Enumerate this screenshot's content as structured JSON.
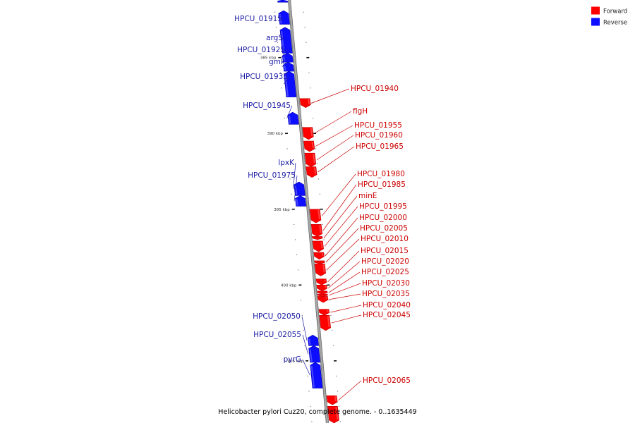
{
  "colors": {
    "forward": "#ff0000",
    "forward_edge": "#c00000",
    "reverse": "#0d0dff",
    "reverse_edge": "#0000b0",
    "backbone": "#9a9a9a",
    "backbone_dark": "#6a6a6a",
    "label_forward": "#cc0000",
    "label_reverse": "#1a1aa6"
  },
  "legend": [
    {
      "label": "Forward",
      "strand": "forward"
    },
    {
      "label": "Reverse",
      "strand": "reverse"
    }
  ],
  "caption": "Helicobacter pylori Cuz20, complete genome. - 0..1635449",
  "genome": {
    "view_start_kbp": 381.2,
    "view_end_kbp": 409.1,
    "tick_interval_kbp": 5,
    "ticks": [
      {
        "kbp": 385,
        "label": "385 kbp"
      },
      {
        "kbp": 390,
        "label": "390 kbp"
      },
      {
        "kbp": 395,
        "label": "395 kbp"
      },
      {
        "kbp": 400,
        "label": "400 kbp"
      },
      {
        "kbp": 405,
        "label": "405 kbp"
      }
    ],
    "genes": [
      {
        "name": "",
        "strand": "reverse",
        "start_kbp": 381.2,
        "end_kbp": 381.35
      },
      {
        "name": "HPCU_01915",
        "strand": "reverse",
        "start_kbp": 381.9,
        "end_kbp": 382.8
      },
      {
        "name": "argS",
        "strand": "reverse",
        "start_kbp": 383.0,
        "end_kbp": 384.7
      },
      {
        "name": "HPCU_01925",
        "strand": "reverse",
        "start_kbp": 384.7,
        "end_kbp": 385.3
      },
      {
        "name": "gmk",
        "strand": "reverse",
        "start_kbp": 385.3,
        "end_kbp": 385.9
      },
      {
        "name": "HPCU_01935",
        "strand": "reverse",
        "start_kbp": 385.9,
        "end_kbp": 387.6
      },
      {
        "name": "HPCU_01940",
        "strand": "forward",
        "start_kbp": 387.7,
        "end_kbp": 388.3
      },
      {
        "name": "HPCU_01945",
        "strand": "reverse",
        "start_kbp": 388.6,
        "end_kbp": 389.4
      },
      {
        "name": "flgH",
        "strand": "forward",
        "start_kbp": 389.6,
        "end_kbp": 390.4
      },
      {
        "name": "HPCU_01955",
        "strand": "forward",
        "start_kbp": 390.5,
        "end_kbp": 391.2
      },
      {
        "name": "HPCU_01960",
        "strand": "forward",
        "start_kbp": 391.3,
        "end_kbp": 392.2
      },
      {
        "name": "HPCU_01965",
        "strand": "forward",
        "start_kbp": 392.2,
        "end_kbp": 392.9
      },
      {
        "name": "lpxK",
        "strand": "reverse",
        "start_kbp": 393.2,
        "end_kbp": 394.1
      },
      {
        "name": "HPCU_01975",
        "strand": "reverse",
        "start_kbp": 394.1,
        "end_kbp": 394.8
      },
      {
        "name": "HPCU_01980",
        "strand": "forward",
        "start_kbp": 395.0,
        "end_kbp": 395.9
      },
      {
        "name": "HPCU_01985",
        "strand": "forward",
        "start_kbp": 396.0,
        "end_kbp": 396.8
      },
      {
        "name": "minE",
        "strand": "forward",
        "start_kbp": 396.8,
        "end_kbp": 397.0
      },
      {
        "name": "HPCU_01995",
        "strand": "forward",
        "start_kbp": 397.1,
        "end_kbp": 397.8
      },
      {
        "name": "HPCU_02000",
        "strand": "forward",
        "start_kbp": 397.85,
        "end_kbp": 398.3
      },
      {
        "name": "HPCU_02005",
        "strand": "forward",
        "start_kbp": 398.4,
        "end_kbp": 398.6
      },
      {
        "name": "HPCU_02010",
        "strand": "forward",
        "start_kbp": 398.6,
        "end_kbp": 399.4
      },
      {
        "name": "HPCU_02015",
        "strand": "forward",
        "start_kbp": 399.6,
        "end_kbp": 400.0
      },
      {
        "name": "HPCU_02020",
        "strand": "forward",
        "start_kbp": 400.0,
        "end_kbp": 400.4
      },
      {
        "name": "HPCU_02025",
        "strand": "forward",
        "start_kbp": 400.4,
        "end_kbp": 400.6
      },
      {
        "name": "HPCU_02030",
        "strand": "forward",
        "start_kbp": 400.6,
        "end_kbp": 400.75
      },
      {
        "name": "HPCU_02035",
        "strand": "forward",
        "start_kbp": 400.75,
        "end_kbp": 401.15
      },
      {
        "name": "HPCU_02040",
        "strand": "forward",
        "start_kbp": 401.6,
        "end_kbp": 402.0
      },
      {
        "name": "HPCU_02045",
        "strand": "forward",
        "start_kbp": 402.0,
        "end_kbp": 403.0
      },
      {
        "name": "HPCU_02050",
        "strand": "reverse",
        "start_kbp": 403.3,
        "end_kbp": 404.0
      },
      {
        "name": "HPCU_02055",
        "strand": "reverse",
        "start_kbp": 404.0,
        "end_kbp": 405.1
      },
      {
        "name": "pyrG",
        "strand": "reverse",
        "start_kbp": 405.1,
        "end_kbp": 406.8
      },
      {
        "name": "HPCU_02065",
        "strand": "forward",
        "start_kbp": 407.3,
        "end_kbp": 407.9
      },
      {
        "name": "",
        "strand": "forward",
        "start_kbp": 408.0,
        "end_kbp": 409.1
      }
    ]
  }
}
